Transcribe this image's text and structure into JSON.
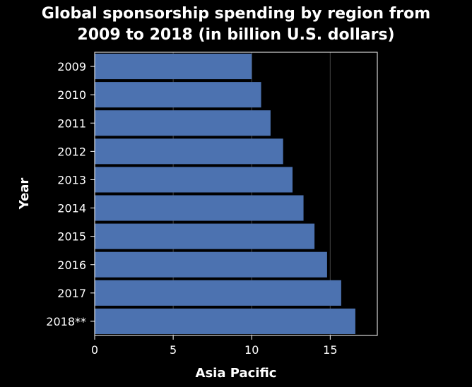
{
  "chart_data": {
    "type": "bar",
    "orientation": "horizontal",
    "title_lines": [
      "Global sponsorship spending by region from",
      "2009 to 2018 (in billion U.S. dollars)"
    ],
    "xlabel": "Asia Pacific",
    "ylabel": "Year",
    "categories": [
      "2009",
      "2010",
      "2011",
      "2012",
      "2013",
      "2014",
      "2015",
      "2016",
      "2017",
      "2018**"
    ],
    "values": [
      10.0,
      10.6,
      11.2,
      12.0,
      12.6,
      13.3,
      14.0,
      14.8,
      15.7,
      16.6
    ],
    "xlim": [
      0,
      18
    ],
    "xticks": [
      0,
      5,
      10,
      15
    ],
    "grid": "vertical",
    "legend": "none",
    "bar_color": "#4c72b0",
    "background_color": "#000000"
  }
}
